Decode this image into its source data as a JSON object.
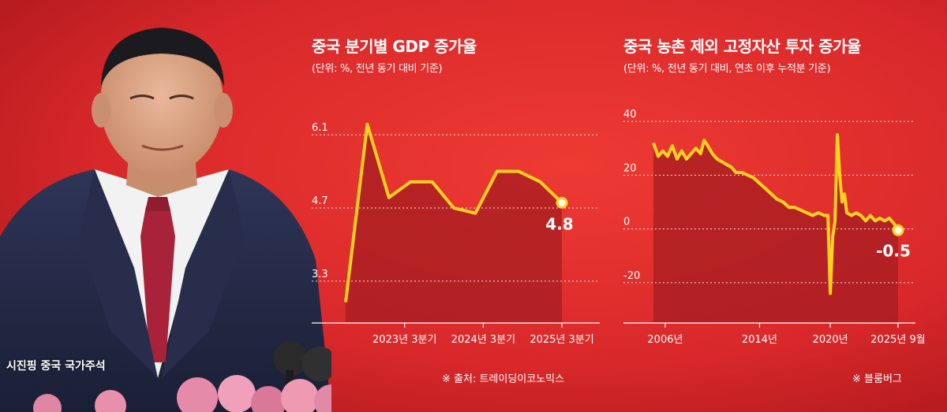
{
  "photo_caption": "시진핑 중국 국가주석",
  "colors": {
    "background": "#d8282a",
    "line": "#ffd21e",
    "area": "#a61e22",
    "grid": "#ffffff"
  },
  "chart_data": [
    {
      "type": "line",
      "title": "중국 분기별 GDP 증가율",
      "subtitle": "(단위: %, 전년 동기 대비 기준)",
      "source": "※ 출처: 트레이딩이코노믹스",
      "x_ticks": [
        "2023년 3분기",
        "2024년 3분기",
        "2025년 3분기"
      ],
      "y_ticks": [
        3.3,
        4.7,
        6.1
      ],
      "ylim": [
        2.5,
        6.9
      ],
      "x": [
        "2022 Q4",
        "2023 Q1",
        "2023 Q2",
        "2023 Q3",
        "2023 Q4",
        "2024 Q1",
        "2024 Q2",
        "2024 Q3",
        "2024 Q4",
        "2025 Q1",
        "2025 Q2",
        "2025 Q3"
      ],
      "values": [
        2.9,
        6.3,
        4.9,
        5.2,
        5.2,
        4.7,
        4.6,
        5.4,
        5.4,
        5.2,
        4.8,
        null
      ],
      "last_label": "4.8"
    },
    {
      "type": "line",
      "title": "중국 농촌 제외 고정자산 투자 증가율",
      "subtitle": "(단위: %, 전년 동기 대비, 연초 이후 누적분 기준)",
      "source": "※ 블룸버그",
      "x_ticks": [
        "2006년",
        "2014년",
        "2020년",
        "2025년 9월"
      ],
      "y_ticks": [
        -20,
        0,
        20,
        40
      ],
      "ylim": [
        -35,
        50
      ],
      "x_range": [
        2005,
        2025.75
      ],
      "series": [
        2005.0,
        32,
        2005.4,
        27,
        2005.8,
        29,
        2006.2,
        27,
        2006.6,
        31,
        2007.0,
        26,
        2007.4,
        29,
        2007.8,
        26,
        2008.2,
        28,
        2008.6,
        30,
        2009.0,
        28,
        2009.3,
        33,
        2009.6,
        31,
        2010.0,
        28,
        2010.4,
        26,
        2010.8,
        25,
        2011.2,
        24,
        2011.6,
        23,
        2012.0,
        21,
        2012.5,
        21,
        2013.0,
        20,
        2013.5,
        19,
        2014.0,
        17,
        2014.5,
        15,
        2015.0,
        13,
        2015.5,
        11,
        2016.0,
        10,
        2016.5,
        8,
        2017.0,
        8,
        2017.5,
        7,
        2018.0,
        6,
        2018.5,
        5,
        2019.0,
        6,
        2019.5,
        5,
        2019.8,
        5,
        2020.0,
        -24,
        2020.2,
        -3,
        2020.4,
        3,
        2020.6,
        35,
        2020.8,
        20,
        2021.0,
        10,
        2021.2,
        13,
        2021.4,
        6,
        2021.8,
        5,
        2022.2,
        6,
        2022.6,
        5,
        2023.0,
        3,
        2023.4,
        5,
        2023.8,
        3,
        2024.2,
        4,
        2024.6,
        3,
        2025.0,
        4,
        2025.4,
        2,
        2025.75,
        -0.5
      ],
      "last_label": "-0.5"
    }
  ]
}
